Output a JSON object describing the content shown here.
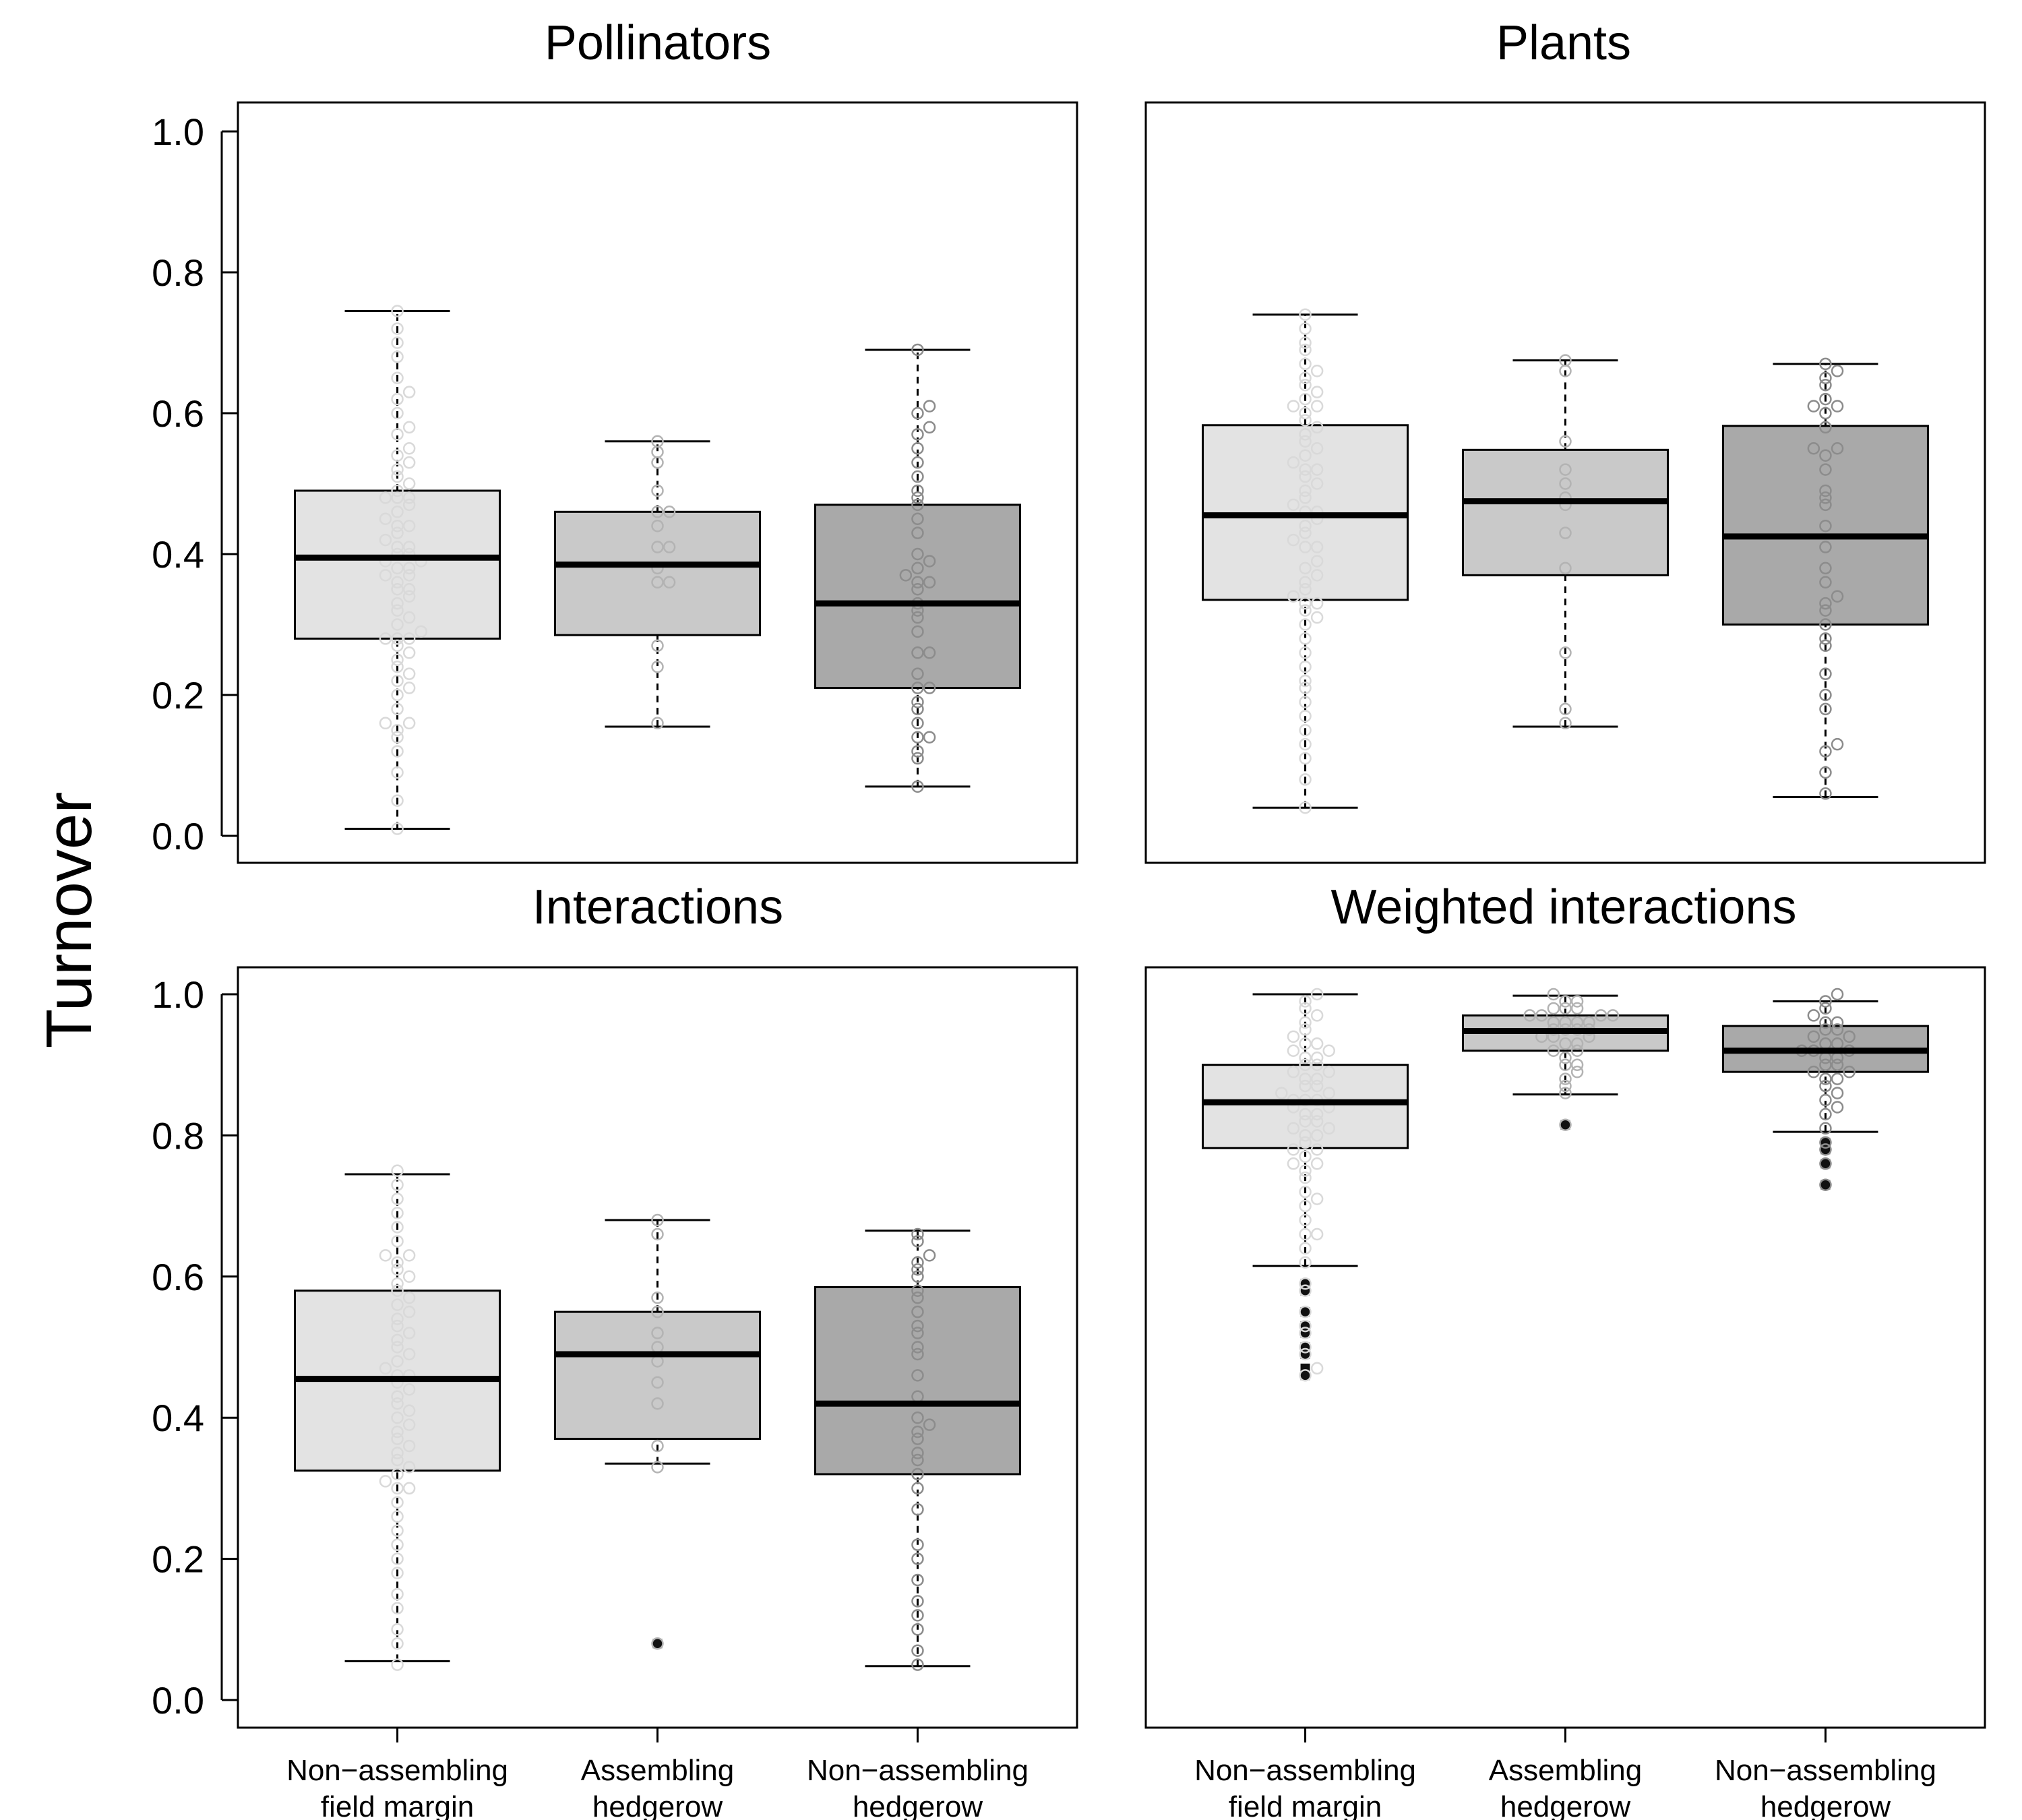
{
  "figure": {
    "ylabel": "Turnover",
    "categories": [
      [
        "Non−assembling",
        "field margin"
      ],
      [
        "Assembling",
        "hedgerow"
      ],
      [
        "Non−assembling",
        "hedgerow"
      ]
    ],
    "yticks": [
      "0.0",
      "0.2",
      "0.4",
      "0.6",
      "0.8",
      "1.0"
    ],
    "colors": {
      "box_fills": [
        "#e3e3e3",
        "#c9c9c9",
        "#a9a9a9"
      ],
      "point_strokes": [
        "#d9d9d9",
        "#b3b3b3",
        "#8c8c8c"
      ],
      "outlier_fill": "#111111",
      "median": "#000000"
    }
  },
  "chart_data": [
    {
      "type": "box",
      "title": "Pollinators",
      "ylim": [
        0,
        1.05
      ],
      "boxes": [
        {
          "category": "Non-assembling field margin",
          "whisker_low": 0.01,
          "q1": 0.28,
          "median": 0.395,
          "q3": 0.49,
          "whisker_high": 0.745,
          "outliers": []
        },
        {
          "category": "Assembling hedgerow",
          "whisker_low": 0.155,
          "q1": 0.285,
          "median": 0.385,
          "q3": 0.46,
          "whisker_high": 0.56,
          "outliers": []
        },
        {
          "category": "Non-assembling hedgerow",
          "whisker_low": 0.07,
          "q1": 0.21,
          "median": 0.33,
          "q3": 0.47,
          "whisker_high": 0.69,
          "outliers": []
        }
      ],
      "points": [
        [
          0.01,
          0.05,
          0.09,
          0.12,
          0.14,
          0.15,
          0.16,
          0.16,
          0.18,
          0.2,
          0.21,
          0.22,
          0.23,
          0.24,
          0.25,
          0.26,
          0.27,
          0.28,
          0.28,
          0.28,
          0.29,
          0.3,
          0.31,
          0.32,
          0.33,
          0.34,
          0.35,
          0.35,
          0.36,
          0.37,
          0.37,
          0.38,
          0.38,
          0.39,
          0.39,
          0.4,
          0.4,
          0.41,
          0.41,
          0.42,
          0.43,
          0.44,
          0.44,
          0.45,
          0.46,
          0.47,
          0.48,
          0.48,
          0.48,
          0.49,
          0.5,
          0.51,
          0.52,
          0.53,
          0.54,
          0.55,
          0.57,
          0.58,
          0.6,
          0.62,
          0.63,
          0.65,
          0.68,
          0.7,
          0.72,
          0.745
        ],
        [
          0.16,
          0.24,
          0.27,
          0.36,
          0.36,
          0.38,
          0.41,
          0.41,
          0.44,
          0.46,
          0.46,
          0.49,
          0.53,
          0.545,
          0.56
        ],
        [
          0.07,
          0.11,
          0.12,
          0.14,
          0.14,
          0.16,
          0.18,
          0.19,
          0.21,
          0.21,
          0.23,
          0.26,
          0.26,
          0.29,
          0.31,
          0.32,
          0.33,
          0.35,
          0.36,
          0.36,
          0.37,
          0.38,
          0.39,
          0.4,
          0.43,
          0.45,
          0.47,
          0.48,
          0.49,
          0.51,
          0.53,
          0.55,
          0.57,
          0.58,
          0.6,
          0.61,
          0.69
        ]
      ]
    },
    {
      "type": "box",
      "title": "Plants",
      "ylim": [
        0,
        1.05
      ],
      "boxes": [
        {
          "category": "Non-assembling field margin",
          "whisker_low": 0.04,
          "q1": 0.335,
          "median": 0.455,
          "q3": 0.583,
          "whisker_high": 0.74,
          "outliers": []
        },
        {
          "category": "Assembling hedgerow",
          "whisker_low": 0.155,
          "q1": 0.37,
          "median": 0.475,
          "q3": 0.548,
          "whisker_high": 0.675,
          "outliers": []
        },
        {
          "category": "Non-assembling hedgerow",
          "whisker_low": 0.055,
          "q1": 0.3,
          "median": 0.425,
          "q3": 0.582,
          "whisker_high": 0.67,
          "outliers": []
        }
      ],
      "points": [
        [
          0.04,
          0.08,
          0.11,
          0.13,
          0.15,
          0.17,
          0.19,
          0.21,
          0.22,
          0.24,
          0.26,
          0.28,
          0.3,
          0.31,
          0.32,
          0.33,
          0.33,
          0.34,
          0.35,
          0.36,
          0.37,
          0.38,
          0.39,
          0.41,
          0.41,
          0.42,
          0.43,
          0.44,
          0.45,
          0.46,
          0.46,
          0.47,
          0.48,
          0.49,
          0.5,
          0.51,
          0.52,
          0.52,
          0.53,
          0.54,
          0.55,
          0.56,
          0.57,
          0.58,
          0.59,
          0.6,
          0.61,
          0.61,
          0.62,
          0.63,
          0.64,
          0.65,
          0.66,
          0.67,
          0.69,
          0.7,
          0.72,
          0.74
        ],
        [
          0.16,
          0.18,
          0.26,
          0.38,
          0.43,
          0.47,
          0.48,
          0.5,
          0.52,
          0.56,
          0.66,
          0.675
        ],
        [
          0.06,
          0.09,
          0.12,
          0.13,
          0.18,
          0.2,
          0.23,
          0.27,
          0.28,
          0.3,
          0.32,
          0.33,
          0.34,
          0.36,
          0.38,
          0.41,
          0.44,
          0.47,
          0.48,
          0.49,
          0.52,
          0.54,
          0.55,
          0.55,
          0.58,
          0.6,
          0.61,
          0.61,
          0.62,
          0.64,
          0.65,
          0.66,
          0.67
        ]
      ]
    },
    {
      "type": "box",
      "title": "Interactions",
      "ylim": [
        0,
        1.05
      ],
      "boxes": [
        {
          "category": "Non-assembling field margin",
          "whisker_low": 0.055,
          "q1": 0.325,
          "median": 0.455,
          "q3": 0.58,
          "whisker_high": 0.745,
          "outliers": []
        },
        {
          "category": "Assembling hedgerow",
          "whisker_low": 0.335,
          "q1": 0.37,
          "median": 0.49,
          "q3": 0.55,
          "whisker_high": 0.68,
          "outliers": [
            0.08
          ]
        },
        {
          "category": "Non-assembling hedgerow",
          "whisker_low": 0.048,
          "q1": 0.32,
          "median": 0.42,
          "q3": 0.585,
          "whisker_high": 0.665,
          "outliers": []
        }
      ],
      "points": [
        [
          0.05,
          0.08,
          0.1,
          0.13,
          0.15,
          0.18,
          0.2,
          0.22,
          0.24,
          0.26,
          0.28,
          0.3,
          0.3,
          0.31,
          0.32,
          0.33,
          0.34,
          0.35,
          0.36,
          0.37,
          0.38,
          0.39,
          0.4,
          0.41,
          0.42,
          0.43,
          0.44,
          0.45,
          0.46,
          0.46,
          0.47,
          0.48,
          0.49,
          0.5,
          0.51,
          0.52,
          0.53,
          0.54,
          0.55,
          0.56,
          0.57,
          0.58,
          0.59,
          0.6,
          0.61,
          0.62,
          0.63,
          0.63,
          0.65,
          0.67,
          0.69,
          0.71,
          0.73,
          0.75
        ],
        [
          0.08,
          0.33,
          0.36,
          0.42,
          0.45,
          0.48,
          0.5,
          0.52,
          0.55,
          0.57,
          0.66,
          0.68
        ],
        [
          0.05,
          0.07,
          0.1,
          0.12,
          0.14,
          0.17,
          0.2,
          0.22,
          0.27,
          0.3,
          0.32,
          0.34,
          0.35,
          0.37,
          0.38,
          0.39,
          0.4,
          0.43,
          0.46,
          0.49,
          0.5,
          0.52,
          0.53,
          0.55,
          0.57,
          0.58,
          0.6,
          0.61,
          0.62,
          0.63,
          0.65,
          0.66
        ]
      ]
    },
    {
      "type": "box",
      "title": "Weighted interactions",
      "ylim": [
        0,
        1.05
      ],
      "boxes": [
        {
          "category": "Non-assembling field margin",
          "whisker_low": 0.615,
          "q1": 0.782,
          "median": 0.847,
          "q3": 0.9,
          "whisker_high": 1.0,
          "outliers": [
            0.46,
            0.47,
            0.49,
            0.5,
            0.52,
            0.53,
            0.55,
            0.58,
            0.59
          ]
        },
        {
          "category": "Assembling hedgerow",
          "whisker_low": 0.858,
          "q1": 0.92,
          "median": 0.948,
          "q3": 0.97,
          "whisker_high": 0.998,
          "outliers": [
            0.815
          ]
        },
        {
          "category": "Non-assembling hedgerow",
          "whisker_low": 0.805,
          "q1": 0.89,
          "median": 0.92,
          "q3": 0.955,
          "whisker_high": 0.99,
          "outliers": [
            0.73,
            0.76,
            0.78,
            0.79
          ]
        }
      ],
      "points": [
        [
          0.46,
          0.47,
          0.49,
          0.5,
          0.52,
          0.53,
          0.55,
          0.58,
          0.59,
          0.62,
          0.64,
          0.66,
          0.66,
          0.68,
          0.7,
          0.71,
          0.72,
          0.74,
          0.75,
          0.76,
          0.76,
          0.77,
          0.78,
          0.78,
          0.79,
          0.8,
          0.8,
          0.81,
          0.81,
          0.82,
          0.82,
          0.83,
          0.83,
          0.84,
          0.84,
          0.85,
          0.85,
          0.85,
          0.86,
          0.86,
          0.87,
          0.87,
          0.88,
          0.88,
          0.89,
          0.89,
          0.9,
          0.9,
          0.91,
          0.91,
          0.92,
          0.92,
          0.93,
          0.93,
          0.94,
          0.95,
          0.96,
          0.97,
          0.98,
          0.99,
          1.0
        ],
        [
          0.815,
          0.86,
          0.87,
          0.88,
          0.89,
          0.9,
          0.9,
          0.91,
          0.92,
          0.92,
          0.93,
          0.93,
          0.94,
          0.94,
          0.94,
          0.95,
          0.95,
          0.95,
          0.95,
          0.96,
          0.96,
          0.96,
          0.96,
          0.97,
          0.97,
          0.97,
          0.97,
          0.98,
          0.98,
          0.98,
          0.99,
          0.99,
          1.0
        ],
        [
          0.73,
          0.76,
          0.78,
          0.79,
          0.81,
          0.83,
          0.84,
          0.85,
          0.86,
          0.87,
          0.88,
          0.88,
          0.89,
          0.89,
          0.9,
          0.9,
          0.91,
          0.91,
          0.92,
          0.92,
          0.92,
          0.93,
          0.93,
          0.94,
          0.94,
          0.95,
          0.95,
          0.96,
          0.96,
          0.97,
          0.98,
          0.99,
          1.0
        ]
      ]
    }
  ]
}
